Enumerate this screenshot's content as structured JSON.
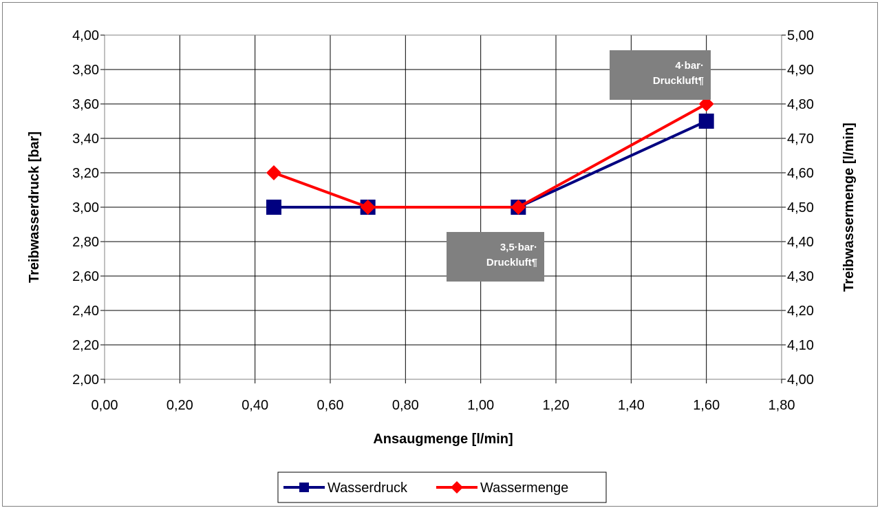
{
  "chart_data": {
    "type": "line",
    "title": "",
    "xlabel": "Ansaugmenge [l/min]",
    "ylabel": "Treibwasserdruck [bar]",
    "y2label": "Treibwassermenge [l/min]",
    "xlim": [
      0,
      1.8
    ],
    "ylim": [
      2.0,
      4.0
    ],
    "y2lim": [
      4.0,
      5.0
    ],
    "x_ticks": [
      "0,00",
      "0,20",
      "0,40",
      "0,60",
      "0,80",
      "1,00",
      "1,20",
      "1,40",
      "1,60",
      "1,80"
    ],
    "y_ticks": [
      "2,00",
      "2,20",
      "2,40",
      "2,60",
      "2,80",
      "3,00",
      "3,20",
      "3,40",
      "3,60",
      "3,80",
      "4,00"
    ],
    "y2_ticks": [
      "4,00",
      "4,10",
      "4,20",
      "4,30",
      "4,40",
      "4,50",
      "4,60",
      "4,70",
      "4,80",
      "4,90",
      "5,00"
    ],
    "grid": true,
    "legend_position": "bottom",
    "series": [
      {
        "name": "Wasserdruck",
        "axis": "left",
        "color": "#000080",
        "marker": "square",
        "x": [
          0.45,
          0.7,
          1.1,
          1.6
        ],
        "y": [
          3.0,
          3.0,
          3.0,
          3.5
        ]
      },
      {
        "name": "Wassermenge",
        "axis": "right",
        "color": "#ff0000",
        "marker": "diamond",
        "x": [
          0.45,
          0.7,
          1.1,
          1.6
        ],
        "y": [
          4.6,
          4.5,
          4.5,
          4.8
        ]
      }
    ],
    "annotations": [
      {
        "lines": [
          "4·bar·",
          "Druckluft¶"
        ],
        "background": "#808080"
      },
      {
        "lines": [
          "3,5·bar·",
          "Druckluft¶"
        ],
        "background": "#808080"
      }
    ]
  }
}
